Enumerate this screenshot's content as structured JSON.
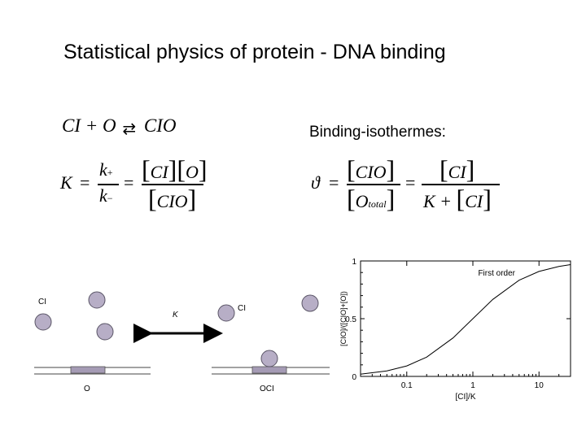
{
  "title": "Statistical physics of protein - DNA binding",
  "reaction": {
    "lhs": "CI + O",
    "arrow": "⇄",
    "rhs": "CIO"
  },
  "equilibrium": {
    "K": "K",
    "equals": "=",
    "k_plus": "k",
    "plus_sub": "+",
    "k_minus": "k",
    "minus_sub": "−",
    "num_ci": "CI",
    "num_o": "O",
    "den_cio": "CIO"
  },
  "isotherm": {
    "label": "Binding-isothermes:",
    "theta": "ϑ",
    "equals": "=",
    "num_cio": "CIO",
    "den_o": "O",
    "den_total": "total",
    "rhs_num": "CI",
    "rhs_den_k": "K +",
    "rhs_den_ci": "CI"
  },
  "schematic": {
    "ci_label_left": "CI",
    "ci_label_right": "CI",
    "k_label": "K",
    "o_label": "O",
    "oci_label": "OCI"
  },
  "chart_data": {
    "type": "line",
    "title": "",
    "annotation": "First order",
    "xlabel": "[CI]/K",
    "ylabel": "[CIO]/([CIO]+[O])",
    "x_scale": "log",
    "xlim": [
      0.02,
      30
    ],
    "ylim": [
      0,
      1
    ],
    "x_ticks": [
      "0.1",
      "1",
      "10"
    ],
    "y_ticks": [
      "0",
      "0.5",
      "1"
    ],
    "grid": false,
    "series": [
      {
        "x": [
          0.02,
          0.05,
          0.1,
          0.2,
          0.5,
          1,
          2,
          5,
          10,
          20,
          30
        ],
        "values": [
          0.02,
          0.048,
          0.091,
          0.167,
          0.333,
          0.5,
          0.667,
          0.833,
          0.909,
          0.952,
          0.968
        ]
      }
    ]
  },
  "colors": {
    "bead_fill": "#b7aec6",
    "site_fill": "#a59bb5"
  }
}
